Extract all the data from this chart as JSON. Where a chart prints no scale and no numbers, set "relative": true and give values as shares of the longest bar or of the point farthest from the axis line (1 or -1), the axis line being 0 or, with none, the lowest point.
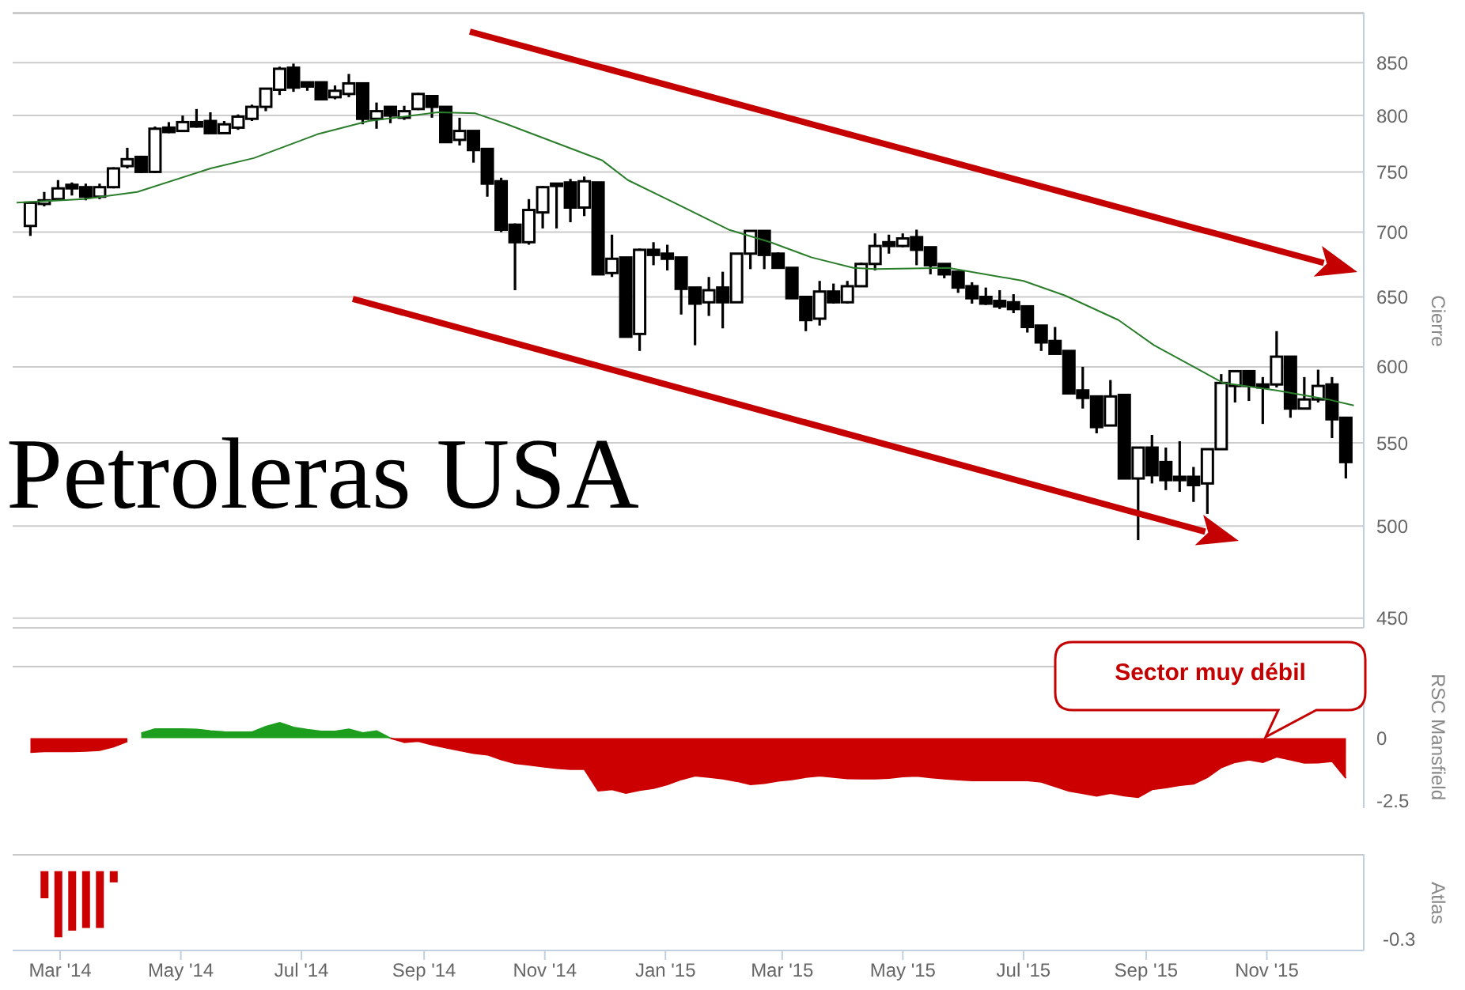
{
  "chart_data": [
    {
      "type": "candlestick",
      "title": "Petroleras USA",
      "ylabel": "Cierre",
      "color": "#000000",
      "log": true,
      "grid": "y",
      "tick_labels": "y",
      "xlim": [
        "2014-02-05",
        "2015-12-20"
      ],
      "ylim": [
        445,
        900
      ],
      "yticks": [
        450,
        500,
        550,
        600,
        650,
        700,
        750,
        800,
        850
      ],
      "x": [
        "2014-02-14",
        "2014-02-21",
        "2014-02-28",
        "2014-03-07",
        "2014-03-14",
        "2014-03-21",
        "2014-03-28",
        "2014-04-04",
        "2014-04-11",
        "2014-04-18",
        "2014-04-25",
        "2014-05-02",
        "2014-05-09",
        "2014-05-16",
        "2014-05-23",
        "2014-05-30",
        "2014-06-06",
        "2014-06-13",
        "2014-06-20",
        "2014-06-27",
        "2014-07-04",
        "2014-07-11",
        "2014-07-18",
        "2014-07-25",
        "2014-08-01",
        "2014-08-08",
        "2014-08-15",
        "2014-08-22",
        "2014-08-29",
        "2014-09-05",
        "2014-09-12",
        "2014-09-19",
        "2014-09-26",
        "2014-10-03",
        "2014-10-10",
        "2014-10-17",
        "2014-10-24",
        "2014-10-31",
        "2014-11-07",
        "2014-11-14",
        "2014-11-21",
        "2014-11-28",
        "2014-12-05",
        "2014-12-12",
        "2014-12-19",
        "2014-12-26",
        "2015-01-02",
        "2015-01-09",
        "2015-01-16",
        "2015-01-23",
        "2015-01-30",
        "2015-02-06",
        "2015-02-13",
        "2015-02-20",
        "2015-02-27",
        "2015-03-06",
        "2015-03-13",
        "2015-03-20",
        "2015-03-27",
        "2015-04-03",
        "2015-04-10",
        "2015-04-17",
        "2015-04-24",
        "2015-05-01",
        "2015-05-08",
        "2015-05-15",
        "2015-05-22",
        "2015-05-29",
        "2015-06-05",
        "2015-06-12",
        "2015-06-19",
        "2015-06-26",
        "2015-07-03",
        "2015-07-10",
        "2015-07-17",
        "2015-07-24",
        "2015-07-31",
        "2015-08-07",
        "2015-08-14",
        "2015-08-21",
        "2015-08-28",
        "2015-09-04",
        "2015-09-11",
        "2015-09-18",
        "2015-09-25",
        "2015-10-02",
        "2015-10-09",
        "2015-10-16",
        "2015-10-23",
        "2015-10-30",
        "2015-11-06",
        "2015-11-13",
        "2015-11-20",
        "2015-11-27",
        "2015-12-04",
        "2015-12-11"
      ],
      "ohlc": [
        [
          705,
          725,
          697,
          724
        ],
        [
          723,
          733,
          721,
          726
        ],
        [
          727,
          743,
          726,
          736
        ],
        [
          739,
          741,
          730,
          736
        ],
        [
          737,
          740,
          726,
          729
        ],
        [
          729,
          740,
          727,
          737
        ],
        [
          737,
          754,
          736,
          753
        ],
        [
          755,
          771,
          753,
          761
        ],
        [
          763,
          764,
          749,
          750
        ],
        [
          750,
          790,
          749,
          788
        ],
        [
          789,
          794,
          784,
          785
        ],
        [
          786,
          800,
          785,
          794
        ],
        [
          794,
          806,
          789,
          790
        ],
        [
          795,
          803,
          784,
          784
        ],
        [
          784,
          795,
          784,
          792
        ],
        [
          789,
          801,
          787,
          799
        ],
        [
          797,
          810,
          795,
          808
        ],
        [
          808,
          825,
          804,
          825
        ],
        [
          824,
          846,
          819,
          844
        ],
        [
          845,
          849,
          822,
          826
        ],
        [
          831,
          831,
          823,
          827
        ],
        [
          831,
          831,
          815,
          815
        ],
        [
          817,
          828,
          815,
          823
        ],
        [
          820,
          839,
          817,
          830
        ],
        [
          830,
          830,
          792,
          797
        ],
        [
          797,
          812,
          788,
          804
        ],
        [
          808,
          808,
          793,
          800
        ],
        [
          798,
          809,
          796,
          804
        ],
        [
          806,
          821,
          805,
          820
        ],
        [
          818,
          818,
          798,
          808
        ],
        [
          808,
          808,
          776,
          776
        ],
        [
          778,
          798,
          773,
          786
        ],
        [
          786,
          786,
          758,
          769
        ],
        [
          770,
          770,
          729,
          740
        ],
        [
          742,
          745,
          700,
          702
        ],
        [
          706,
          707,
          655,
          692
        ],
        [
          692,
          727,
          690,
          718
        ],
        [
          716,
          738,
          703,
          737
        ],
        [
          740,
          740,
          703,
          738
        ],
        [
          741,
          744,
          708,
          720
        ],
        [
          720,
          746,
          713,
          742
        ],
        [
          741,
          741,
          667,
          667
        ],
        [
          668,
          698,
          665,
          679
        ],
        [
          680,
          680,
          621,
          621
        ],
        [
          623,
          687,
          611,
          686
        ],
        [
          686,
          692,
          674,
          682
        ],
        [
          683,
          690,
          670,
          679
        ],
        [
          680,
          680,
          637,
          656
        ],
        [
          657,
          657,
          615,
          645
        ],
        [
          646,
          665,
          636,
          655
        ],
        [
          657,
          669,
          627,
          646
        ],
        [
          646,
          683,
          646,
          683
        ],
        [
          683,
          701,
          671,
          701
        ],
        [
          701,
          701,
          671,
          682
        ],
        [
          683,
          684,
          672,
          672
        ],
        [
          672,
          672,
          649,
          649
        ],
        [
          650,
          650,
          625,
          633
        ],
        [
          634,
          662,
          629,
          654
        ],
        [
          654,
          660,
          645,
          646
        ],
        [
          646,
          662,
          645,
          658
        ],
        [
          658,
          676,
          658,
          675
        ],
        [
          675,
          699,
          670,
          689
        ],
        [
          692,
          698,
          683,
          689
        ],
        [
          689,
          699,
          688,
          695
        ],
        [
          696,
          702,
          674,
          686
        ],
        [
          688,
          688,
          667,
          674
        ],
        [
          675,
          675,
          664,
          667
        ],
        [
          669,
          669,
          653,
          657
        ],
        [
          658,
          661,
          645,
          649
        ],
        [
          650,
          657,
          644,
          645
        ],
        [
          647,
          655,
          641,
          643
        ],
        [
          646,
          652,
          638,
          641
        ],
        [
          643,
          643,
          624,
          628
        ],
        [
          629,
          629,
          611,
          617
        ],
        [
          618,
          628,
          609,
          609
        ],
        [
          611,
          611,
          582,
          582
        ],
        [
          584,
          600,
          572,
          579
        ],
        [
          580,
          580,
          556,
          560
        ],
        [
          561,
          591,
          561,
          580
        ],
        [
          581,
          581,
          528,
          528
        ],
        [
          528,
          547,
          492,
          547
        ],
        [
          547,
          555,
          525,
          530
        ],
        [
          538,
          547,
          521,
          527
        ],
        [
          529,
          551,
          520,
          527
        ],
        [
          529,
          535,
          514,
          524
        ],
        [
          525,
          546,
          507,
          546
        ],
        [
          546,
          595,
          546,
          589
        ],
        [
          587,
          597,
          576,
          597
        ],
        [
          597,
          597,
          577,
          587
        ],
        [
          588,
          593,
          562,
          586
        ],
        [
          588,
          625,
          586,
          607
        ],
        [
          607,
          607,
          566,
          572
        ],
        [
          572,
          593,
          572,
          578
        ],
        [
          578,
          598,
          576,
          587
        ],
        [
          588,
          593,
          553,
          565
        ],
        [
          566,
          566,
          528,
          538
        ]
      ],
      "series": [
        {
          "type": "line",
          "color": "#2a7d2a",
          "x": [
            "2014-02-07",
            "2014-03-13",
            "2014-04-09",
            "2014-05-16",
            "2014-06-07",
            "2014-07-09",
            "2014-08-04",
            "2014-09-08",
            "2014-09-27",
            "2014-10-13",
            "2014-11-30",
            "2014-12-13",
            "2015-01-03",
            "2015-02-02",
            "2015-02-23",
            "2015-03-16",
            "2015-04-06",
            "2015-04-17",
            "2015-05-24",
            "2015-07-01",
            "2015-07-22",
            "2015-08-18",
            "2015-09-05",
            "2015-10-10",
            "2015-11-06",
            "2015-12-02",
            "2015-12-15"
          ],
          "values": [
            724,
            727,
            733,
            753,
            762,
            783,
            795,
            803,
            802,
            792,
            760,
            743,
            726,
            702,
            692,
            680,
            672,
            671,
            672,
            662,
            651,
            633,
            615,
            589,
            584,
            578,
            574
          ]
        }
      ]
    },
    {
      "type": "area",
      "ylabel": "RSC Mansfield",
      "tick_labels": "y",
      "annotations": [
        "Sector muy débil"
      ],
      "xlim": [
        "2014-02-05",
        "2015-12-20"
      ],
      "ylim": [
        -2.8,
        2.9
      ],
      "yticks": [
        0,
        -2.5
      ],
      "x": [
        "2014-02-14",
        "2014-02-21",
        "2014-02-28",
        "2014-03-07",
        "2014-03-14",
        "2014-03-21",
        "2014-03-28",
        "2014-04-04",
        "2014-04-11",
        "2014-04-18",
        "2014-04-25",
        "2014-05-02",
        "2014-05-09",
        "2014-05-16",
        "2014-05-23",
        "2014-05-30",
        "2014-06-06",
        "2014-06-13",
        "2014-06-20",
        "2014-06-27",
        "2014-07-04",
        "2014-07-11",
        "2014-07-18",
        "2014-07-25",
        "2014-08-01",
        "2014-08-08",
        "2014-08-15",
        "2014-08-22",
        "2014-08-29",
        "2014-09-05",
        "2014-09-12",
        "2014-09-19",
        "2014-09-26",
        "2014-10-03",
        "2014-10-10",
        "2014-10-17",
        "2014-10-24",
        "2014-10-31",
        "2014-11-07",
        "2014-11-14",
        "2014-11-21",
        "2014-11-28",
        "2014-12-05",
        "2014-12-12",
        "2014-12-19",
        "2014-12-26",
        "2015-01-02",
        "2015-01-09",
        "2015-01-16",
        "2015-01-23",
        "2015-01-30",
        "2015-02-06",
        "2015-02-13",
        "2015-02-20",
        "2015-02-27",
        "2015-03-06",
        "2015-03-13",
        "2015-03-20",
        "2015-03-27",
        "2015-04-03",
        "2015-04-10",
        "2015-04-17",
        "2015-04-24",
        "2015-05-01",
        "2015-05-08",
        "2015-05-15",
        "2015-05-22",
        "2015-05-29",
        "2015-06-05",
        "2015-06-12",
        "2015-06-19",
        "2015-06-26",
        "2015-07-03",
        "2015-07-10",
        "2015-07-17",
        "2015-07-24",
        "2015-07-31",
        "2015-08-07",
        "2015-08-14",
        "2015-08-21",
        "2015-08-28",
        "2015-09-04",
        "2015-09-11",
        "2015-09-18",
        "2015-09-25",
        "2015-10-02",
        "2015-10-09",
        "2015-10-16",
        "2015-10-23",
        "2015-10-30",
        "2015-11-06",
        "2015-11-13",
        "2015-11-20",
        "2015-11-27",
        "2015-12-04",
        "2015-12-11"
      ],
      "series": [
        {
          "color": "#1e9e1e",
          "values": [
            null,
            null,
            null,
            null,
            null,
            null,
            null,
            null,
            0.2,
            0.37,
            0.37,
            0.37,
            0.35,
            0.29,
            0.25,
            0.24,
            0.24,
            0.46,
            0.62,
            0.43,
            0.34,
            0.27,
            0.27,
            0.36,
            0.21,
            0.29,
            0,
            null,
            null,
            null,
            null,
            null,
            null,
            null,
            null,
            null,
            null,
            null,
            null,
            null,
            null,
            null,
            null,
            null,
            null,
            null,
            null,
            null,
            null,
            null,
            null,
            null,
            null,
            null,
            null,
            null,
            null,
            null,
            null,
            null,
            null,
            null,
            null,
            null,
            null,
            null,
            null,
            null,
            null,
            null,
            null,
            null,
            null,
            null,
            null,
            null,
            null,
            null,
            null,
            null,
            null,
            null,
            null,
            null,
            null,
            null,
            null,
            null,
            null,
            null,
            null,
            null,
            null,
            null,
            null,
            null
          ]
        },
        {
          "color": "#cc0000",
          "values": [
            -0.56,
            -0.53,
            -0.53,
            -0.53,
            -0.51,
            -0.48,
            -0.34,
            -0.13,
            null,
            null,
            null,
            null,
            null,
            null,
            null,
            null,
            null,
            null,
            null,
            null,
            null,
            null,
            null,
            null,
            null,
            null,
            0,
            -0.16,
            -0.12,
            -0.26,
            -0.38,
            -0.49,
            -0.6,
            -0.66,
            -0.85,
            -1.0,
            -1.07,
            -1.14,
            -1.2,
            -1.24,
            -1.24,
            -2.1,
            -2.05,
            -2.2,
            -2.08,
            -2.0,
            -1.85,
            -1.65,
            -1.5,
            -1.56,
            -1.62,
            -1.72,
            -1.85,
            -1.8,
            -1.71,
            -1.65,
            -1.56,
            -1.5,
            -1.56,
            -1.61,
            -1.62,
            -1.62,
            -1.6,
            -1.53,
            -1.51,
            -1.57,
            -1.62,
            -1.66,
            -1.69,
            -1.69,
            -1.69,
            -1.69,
            -1.69,
            -1.75,
            -1.93,
            -2.11,
            -2.21,
            -2.31,
            -2.2,
            -2.3,
            -2.36,
            -2.05,
            -1.98,
            -1.88,
            -1.83,
            -1.56,
            -1.17,
            -0.96,
            -0.86,
            -0.96,
            -0.74,
            -0.86,
            -0.99,
            -0.98,
            -0.92,
            -1.6
          ]
        }
      ]
    },
    {
      "type": "bar",
      "ylabel": "Atlas",
      "relative": true,
      "tick_labels": "x",
      "annotations": [
        "-0.3"
      ],
      "color": "#cc0000",
      "xlim": [
        "2014-02-05",
        "2015-12-20"
      ],
      "xticks": [
        {
          "value": "2014-03-01",
          "label": "Mar '14"
        },
        {
          "value": "2014-05-01",
          "label": "May '14"
        },
        {
          "value": "2014-07-01",
          "label": "Jul '14"
        },
        {
          "value": "2014-09-01",
          "label": "Sep '14"
        },
        {
          "value": "2014-11-01",
          "label": "Nov '14"
        },
        {
          "value": "2015-01-01",
          "label": "Jan '15"
        },
        {
          "value": "2015-03-01",
          "label": "Mar '15"
        },
        {
          "value": "2015-05-01",
          "label": "May '15"
        },
        {
          "value": "2015-07-01",
          "label": "Jul '15"
        },
        {
          "value": "2015-09-01",
          "label": "Sep '15"
        },
        {
          "value": "2015-11-01",
          "label": "Nov '15"
        }
      ],
      "x": [
        "2014-02-21",
        "2014-02-28",
        "2014-03-07",
        "2014-03-14",
        "2014-03-21",
        "2014-03-28"
      ],
      "values": [
        -0.41,
        -1,
        -0.9,
        -0.86,
        -0.86,
        -0.17
      ]
    }
  ]
}
